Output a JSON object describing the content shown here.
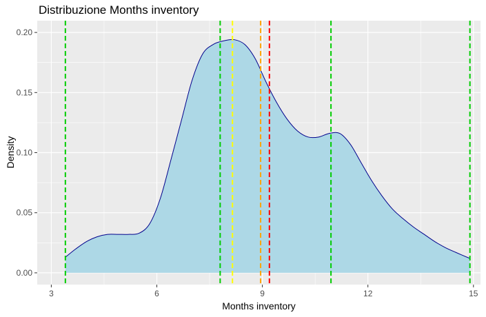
{
  "chart_data": {
    "type": "area",
    "title": "Distribuzione Months inventory",
    "xlabel": "Months inventory",
    "ylabel": "Density",
    "xlim": [
      2.6,
      15.2
    ],
    "ylim": [
      -0.0098,
      0.2098
    ],
    "x_ticks": [
      3,
      6,
      9,
      12,
      15
    ],
    "y_ticks": [
      0.0,
      0.05,
      0.1,
      0.15,
      0.2
    ],
    "x_tick_labels": [
      "3",
      "6",
      "9",
      "12",
      "15"
    ],
    "y_tick_labels": [
      "0.00",
      "0.05",
      "0.10",
      "0.15",
      "0.20"
    ],
    "grid": true,
    "fill_color": "#ADD8E6",
    "line_color": "#00008B",
    "series": [
      {
        "x": [
          3.4,
          3.7,
          4.0,
          4.3,
          4.6,
          4.9,
          5.2,
          5.5,
          5.8,
          6.1,
          6.4,
          6.7,
          7.0,
          7.3,
          7.6,
          7.9,
          8.2,
          8.5,
          8.8,
          9.1,
          9.4,
          9.7,
          10.0,
          10.3,
          10.6,
          10.9,
          11.2,
          11.5,
          11.8,
          12.1,
          12.4,
          12.7,
          13.0,
          13.3,
          13.6,
          13.9,
          14.2,
          14.5,
          14.9
        ],
        "y": [
          0.013,
          0.02,
          0.026,
          0.03,
          0.032,
          0.032,
          0.032,
          0.033,
          0.041,
          0.062,
          0.094,
          0.127,
          0.16,
          0.182,
          0.19,
          0.193,
          0.194,
          0.19,
          0.178,
          0.159,
          0.142,
          0.128,
          0.118,
          0.113,
          0.113,
          0.116,
          0.116,
          0.107,
          0.092,
          0.077,
          0.064,
          0.053,
          0.045,
          0.038,
          0.032,
          0.026,
          0.021,
          0.017,
          0.012
        ]
      }
    ],
    "vlines": [
      {
        "x": 3.4,
        "color": "#00CC00"
      },
      {
        "x": 7.8,
        "color": "#00CC00"
      },
      {
        "x": 8.15,
        "color": "#FFFF00"
      },
      {
        "x": 8.95,
        "color": "#FFA500"
      },
      {
        "x": 9.2,
        "color": "#FF0000"
      },
      {
        "x": 10.95,
        "color": "#00CC00"
      },
      {
        "x": 14.9,
        "color": "#00CC00"
      }
    ],
    "panel_background": "#EBEBEB",
    "grid_color": "#FFFFFF"
  }
}
